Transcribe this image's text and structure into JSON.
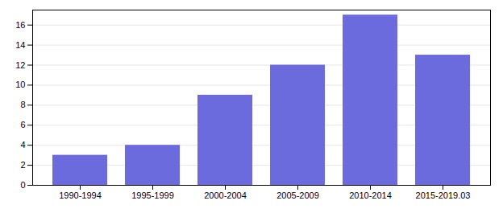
{
  "chart_data": {
    "type": "bar",
    "categories": [
      "1990-1994",
      "1995-1999",
      "2000-2004",
      "2005-2009",
      "2010-2014",
      "2015-2019.03"
    ],
    "values": [
      3,
      4,
      9,
      12,
      17,
      13
    ],
    "color": "#6B6BDD",
    "ylim": [
      0,
      17.5
    ],
    "yticks": [
      0,
      2,
      4,
      6,
      8,
      10,
      12,
      14,
      16
    ],
    "grid": true
  }
}
